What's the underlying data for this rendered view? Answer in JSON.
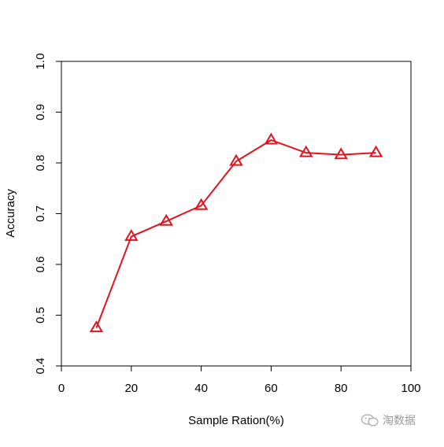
{
  "chart_data": {
    "type": "line",
    "title": "",
    "xlabel": "Sample Ration(%)",
    "ylabel": "Accuracy",
    "xlim": [
      0,
      100
    ],
    "ylim": [
      0.4,
      1.0
    ],
    "xticks": [
      0,
      20,
      40,
      60,
      80,
      100
    ],
    "yticks": [
      0.4,
      0.5,
      0.6,
      0.7,
      0.8,
      0.9,
      1.0
    ],
    "xtick_labels": [
      "0",
      "20",
      "40",
      "60",
      "80",
      "100"
    ],
    "ytick_labels": [
      "0.4",
      "0.5",
      "0.6",
      "0.7",
      "0.8",
      "0.9",
      "1.0"
    ],
    "grid": false,
    "series": [
      {
        "color": "#e0141e",
        "marker": "triangle",
        "x": [
          10,
          20,
          30,
          40,
          50,
          60,
          70,
          80,
          90
        ],
        "y": [
          0.475,
          0.655,
          0.685,
          0.716,
          0.803,
          0.845,
          0.82,
          0.816,
          0.82
        ]
      }
    ]
  },
  "watermark": {
    "text": "淘数据",
    "icon": "wechat-icon"
  }
}
